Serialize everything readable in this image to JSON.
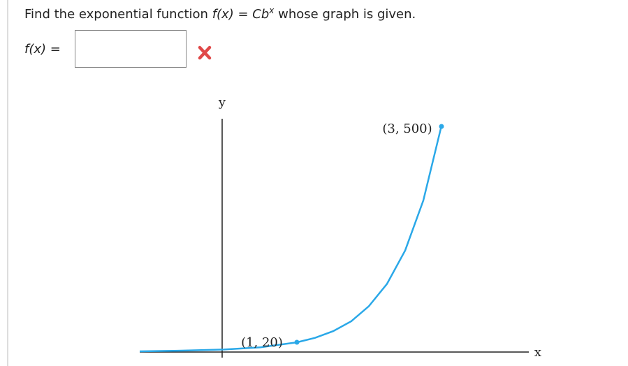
{
  "question": {
    "lead": "Find the exponential function",
    "function": "f(x)",
    "equals": "=",
    "base": "Cb",
    "exponent": "x",
    "tail": "whose graph is given."
  },
  "answer": {
    "label": "f(x)",
    "equals": "=",
    "input": ""
  },
  "graph": {
    "y_axis_label": "y",
    "x_axis_label": "x",
    "points": [
      {
        "label": "(1, 20)"
      },
      {
        "label": "(3, 500)"
      }
    ]
  }
}
